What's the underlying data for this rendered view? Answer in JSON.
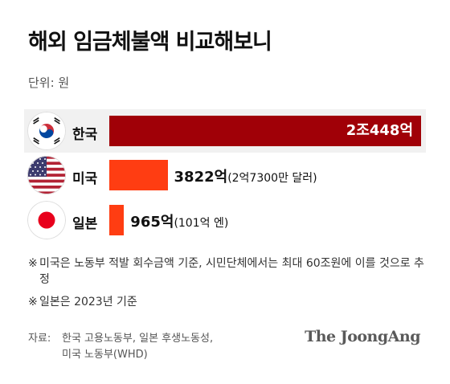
{
  "title": "해외 임금체불액 비교해보니",
  "unit": "단위: 원",
  "colors": {
    "korea": "#a00007",
    "others": "#ff3d12",
    "row_highlight": "#f1f1f1"
  },
  "chart_data": {
    "type": "bar",
    "orientation": "horizontal",
    "categories": [
      "한국",
      "미국",
      "일본"
    ],
    "values": [
      20448,
      3822,
      965
    ],
    "value_labels": [
      "2조448억",
      "3822억",
      "965억"
    ],
    "value_notes": [
      "",
      "(2억7300만 달러)",
      "(101억 엔)"
    ],
    "icons": [
      "korea-flag-icon",
      "usa-flag-icon",
      "japan-flag-icon"
    ],
    "unit": "원",
    "xlim": [
      0,
      20448
    ],
    "grid": false,
    "legend": "none"
  },
  "notes": [
    {
      "mark": "※",
      "text": "미국은 노동부 적발 회수금액 기준, 시민단체에서는 최대 60조원에 이를 것으로 추정"
    },
    {
      "mark": "※",
      "text": "일본은 2023년 기준"
    }
  ],
  "source": {
    "label": "자료:",
    "line1": "한국 고용노동부, 일본 후생노동성,",
    "line2": "미국 노동부(WHD)"
  },
  "logo": "The JoongAng"
}
